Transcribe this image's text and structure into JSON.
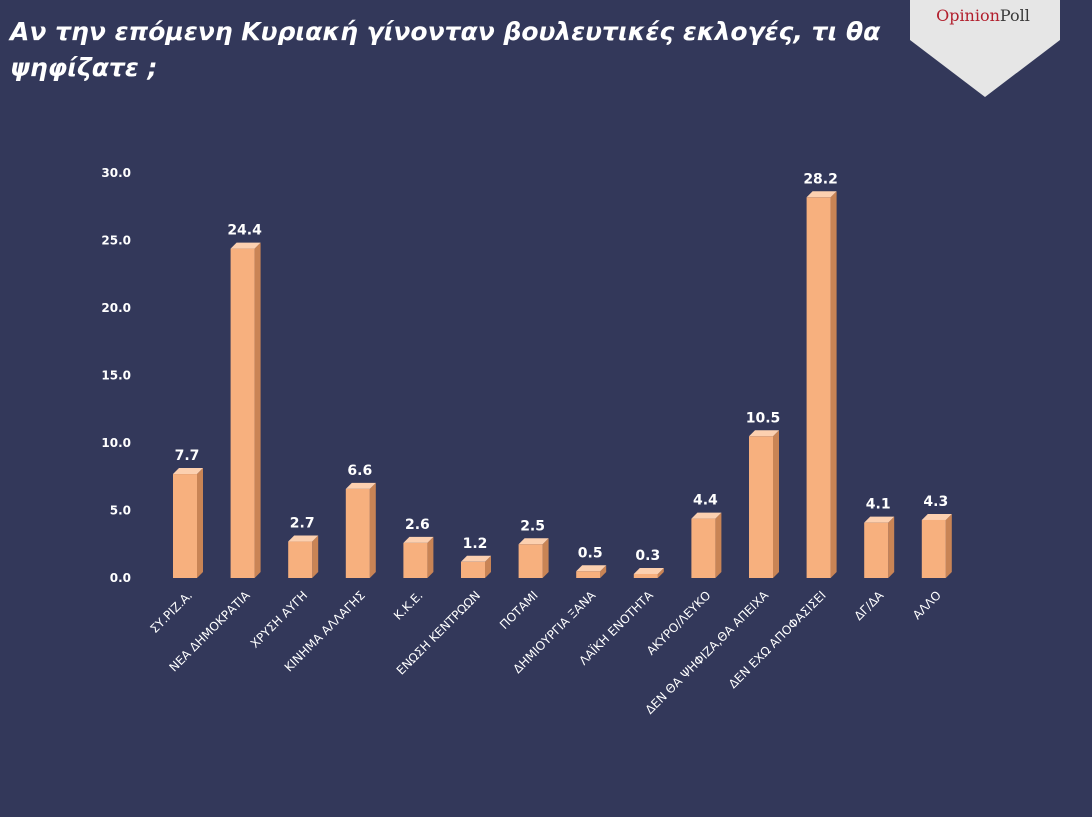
{
  "page": {
    "title": "Αν την επόμενη Κυριακή γίνονταν βουλευτικές εκλογές, τι θα ψηφίζατε ;",
    "logo_part1": "Opinion",
    "logo_part2": "Poll"
  },
  "colors": {
    "background": "#33385a",
    "bar_front": "#f7b07e",
    "bar_side": "#c98455",
    "bar_top": "#fcd0b0",
    "logo_bg": "#e6e6e6"
  },
  "chart_data": {
    "type": "bar",
    "title": "",
    "xlabel": "",
    "ylabel": "",
    "ylim": [
      0,
      30
    ],
    "yticks": [
      "0.0",
      "5.0",
      "10.0",
      "15.0",
      "20.0",
      "25.0",
      "30.0"
    ],
    "grid": false,
    "categories": [
      "ΣΥ.ΡΙΖ.Α.",
      "ΝΕΑ ΔΗΜΟΚΡΑΤΙΑ",
      "ΧΡΥΣΗ ΑΥΓΗ",
      "ΚΙΝΗΜΑ ΑΛΛΑΓΗΣ",
      "Κ.Κ.Ε.",
      "ΕΝΩΣΗ ΚΕΝΤΡΩΩΝ",
      "ΠΟΤΑΜΙ",
      "ΔΗΜΙΟΥΡΓΙΑ ΞΑΝΑ",
      "ΛΑΪΚΗ ΕΝΟΤΗΤΑ",
      "ΑΚΥΡΟ/ΛΕΥΚΟ",
      "ΔΕΝ ΘΑ ΨΗΦΙΖΑ,ΘΑ ΑΠΕΙΧΑ",
      "ΔΕΝ ΕΧΩ ΑΠΟΦΑΣΙΣΕΙ",
      "ΔΓ/ΔΑ",
      "ΑΛΛΟ"
    ],
    "values": [
      7.7,
      24.4,
      2.7,
      6.6,
      2.6,
      1.2,
      2.5,
      0.5,
      0.3,
      4.4,
      10.5,
      28.2,
      4.1,
      4.3
    ],
    "value_labels": [
      "7.7",
      "24.4",
      "2.7",
      "6.6",
      "2.6",
      "1.2",
      "2.5",
      "0.5",
      "0.3",
      "4.4",
      "10.5",
      "28.2",
      "4.1",
      "4.3"
    ]
  }
}
